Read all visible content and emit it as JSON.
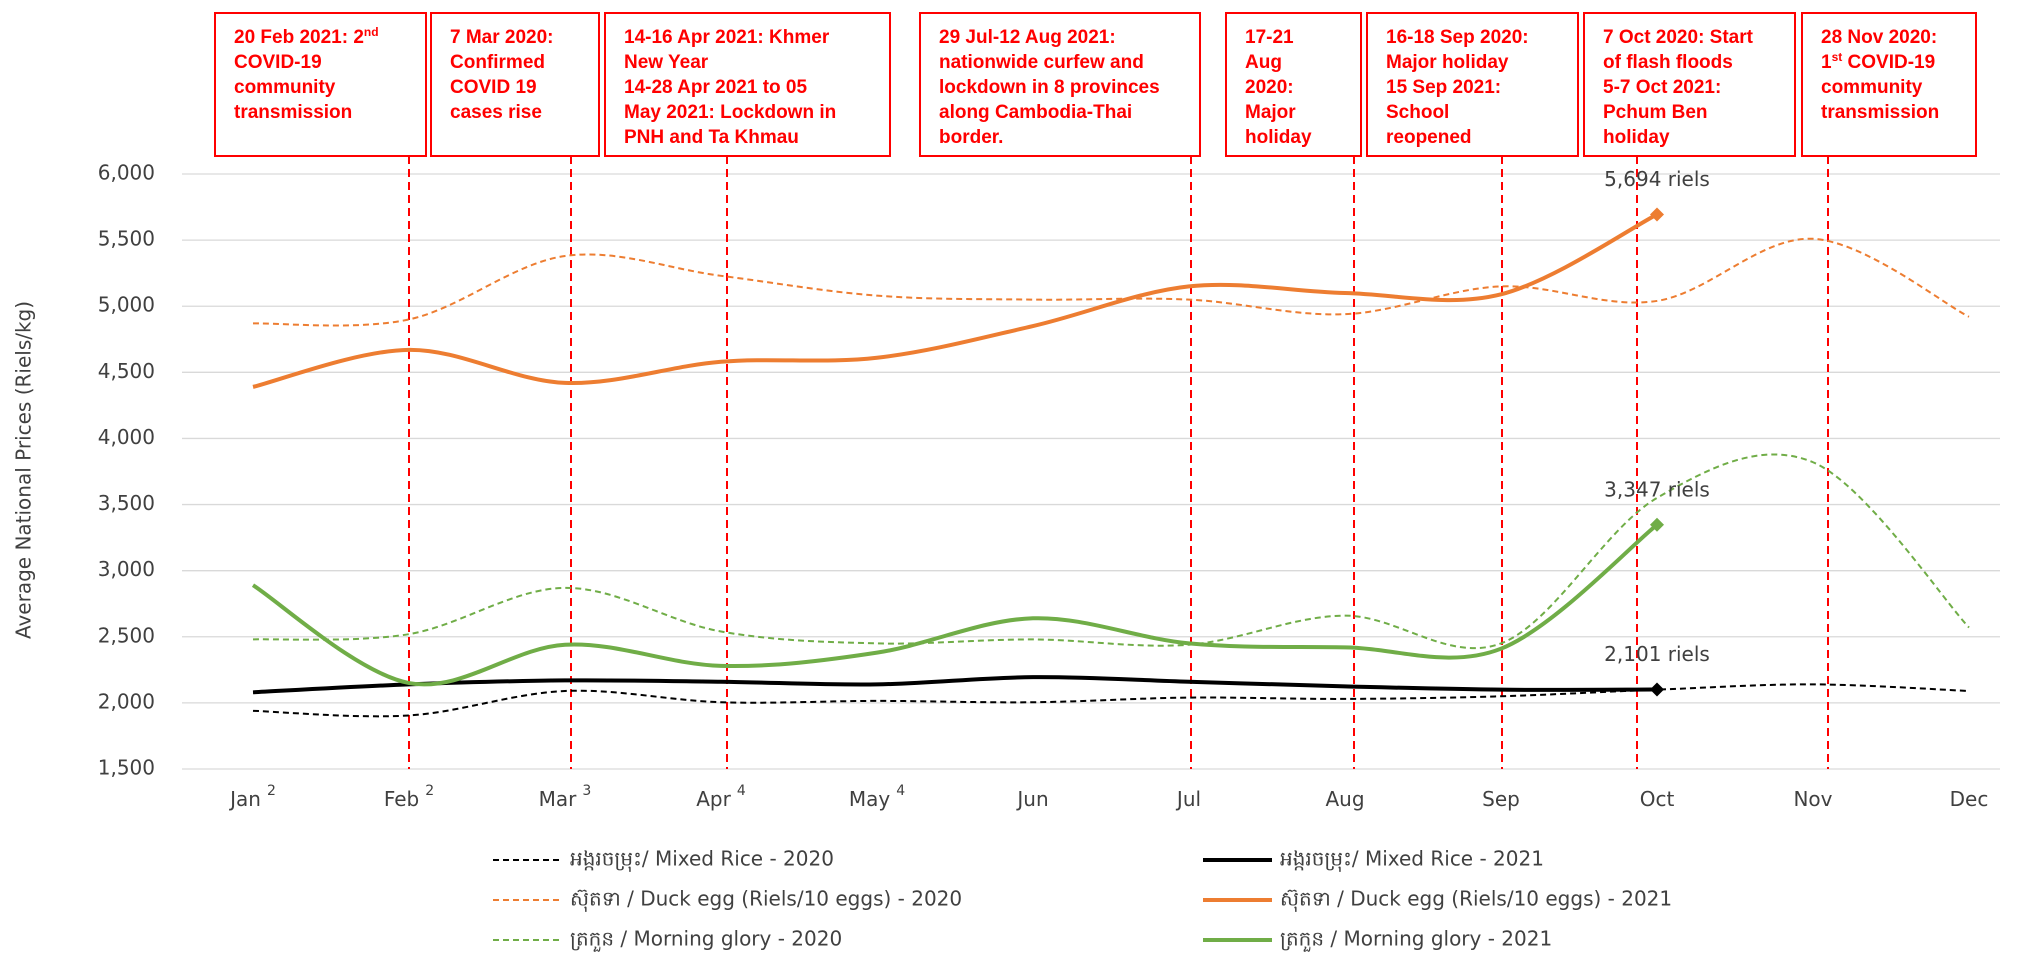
{
  "chart_data": {
    "type": "line",
    "y_label": "Average National Prices (Riels/kg)",
    "categories": [
      "Jan",
      "Feb",
      "Mar",
      "Apr",
      "May",
      "Jun",
      "Jul",
      "Aug",
      "Sep",
      "Oct",
      "Nov",
      "Dec"
    ],
    "category_superscripts": [
      "2",
      "2",
      "3",
      "4",
      "4",
      null,
      null,
      null,
      null,
      null,
      null,
      null
    ],
    "ylim": [
      1500,
      6000
    ],
    "yticks": [
      {
        "value": 1500,
        "label": "1,500"
      },
      {
        "value": 2000,
        "label": "2,000"
      },
      {
        "value": 2500,
        "label": "2,500"
      },
      {
        "value": 3000,
        "label": "3,000"
      },
      {
        "value": 3500,
        "label": "3,500"
      },
      {
        "value": 4000,
        "label": "4,000"
      },
      {
        "value": 4500,
        "label": "4,500"
      },
      {
        "value": 5000,
        "label": "5,000"
      },
      {
        "value": 5500,
        "label": "5,500"
      },
      {
        "value": 6000,
        "label": "6,000"
      }
    ],
    "grid": true,
    "series": [
      {
        "name": "អង្ករចម្រុះ/ Mixed Rice - 2020",
        "color": "#000000",
        "dashed": true,
        "values": [
          1940,
          1905,
          2090,
          2005,
          2015,
          2005,
          2040,
          2030,
          2050,
          2100,
          2140,
          2090
        ]
      },
      {
        "name": "អង្ករចម្រុះ/ Mixed Rice - 2021",
        "color": "#000000",
        "dashed": false,
        "values": [
          2080,
          2140,
          2170,
          2160,
          2140,
          2195,
          2160,
          2125,
          2100,
          2101,
          null,
          null
        ],
        "value_labels": [
          null,
          null,
          null,
          null,
          null,
          null,
          null,
          null,
          null,
          "2,101 riels",
          null,
          null
        ]
      },
      {
        "name": "ស៊ុតទា / Duck egg (Riels/10 eggs) - 2020",
        "color": "#ed7d31",
        "dashed": true,
        "values": [
          4870,
          4900,
          5380,
          5230,
          5080,
          5050,
          5050,
          4940,
          5150,
          5040,
          5510,
          4920
        ]
      },
      {
        "name": "ស៊ុតទា / Duck egg (Riels/10 eggs) - 2021",
        "color": "#ed7d31",
        "dashed": false,
        "values": [
          4390,
          4670,
          4420,
          4580,
          4610,
          4850,
          5150,
          5100,
          5090,
          5694,
          null,
          null
        ],
        "value_labels": [
          null,
          null,
          null,
          null,
          null,
          null,
          null,
          null,
          null,
          "5,694 riels",
          null,
          null
        ]
      },
      {
        "name": "ត្រកួន / Morning glory - 2020",
        "color": "#70ad47",
        "dashed": true,
        "values": [
          2480,
          2520,
          2870,
          2540,
          2450,
          2480,
          2440,
          2660,
          2450,
          3550,
          3820,
          2570
        ]
      },
      {
        "name": "ត្រកួន / Morning glory - 2021",
        "color": "#70ad47",
        "dashed": false,
        "values": [
          2890,
          2150,
          2440,
          2280,
          2380,
          2640,
          2450,
          2420,
          2410,
          3347,
          null,
          null
        ],
        "value_labels": [
          null,
          null,
          null,
          null,
          null,
          null,
          null,
          null,
          null,
          "3,347 riels",
          null,
          null
        ]
      }
    ],
    "annotations": [
      [
        [
          "20 Feb 2021: 2",
          {
            "sup": "nd"
          }
        ],
        [
          "COVID-19"
        ],
        [
          "community"
        ],
        [
          "transmission"
        ]
      ],
      [
        [
          "7 Mar 2020:"
        ],
        [
          "Confirmed"
        ],
        [
          "COVID 19"
        ],
        [
          "cases rise"
        ]
      ],
      [
        [
          "14-16 Apr 2021: Khmer"
        ],
        [
          "New Year"
        ],
        [
          "14-28 Apr 2021 to 05"
        ],
        [
          "May 2021: Lockdown in"
        ],
        [
          "PNH and Ta Khmau"
        ]
      ],
      [
        [
          "29 Jul-12 Aug 2021:"
        ],
        [
          "nationwide curfew and"
        ],
        [
          "lockdown in 8 provinces"
        ],
        [
          "along Cambodia-Thai"
        ],
        [
          "border."
        ]
      ],
      [
        [
          "17-21"
        ],
        [
          "Aug"
        ],
        [
          "2020:"
        ],
        [
          "Major"
        ],
        [
          "holiday"
        ]
      ],
      [
        [
          "16-18 Sep 2020:"
        ],
        [
          "Major holiday"
        ],
        [
          "15 Sep 2021:"
        ],
        [
          "School"
        ],
        [
          "reopened"
        ]
      ],
      [
        [
          "7 Oct 2020: Start"
        ],
        [
          "of flash floods"
        ],
        [
          "5-7 Oct 2021:"
        ],
        [
          "Pchum Ben"
        ],
        [
          "holiday"
        ]
      ],
      [
        [
          "28 Nov 2020:"
        ],
        [
          "1",
          {
            "sup": "st"
          },
          " COVID-19"
        ],
        [
          "community"
        ],
        [
          "transmission"
        ]
      ]
    ]
  }
}
